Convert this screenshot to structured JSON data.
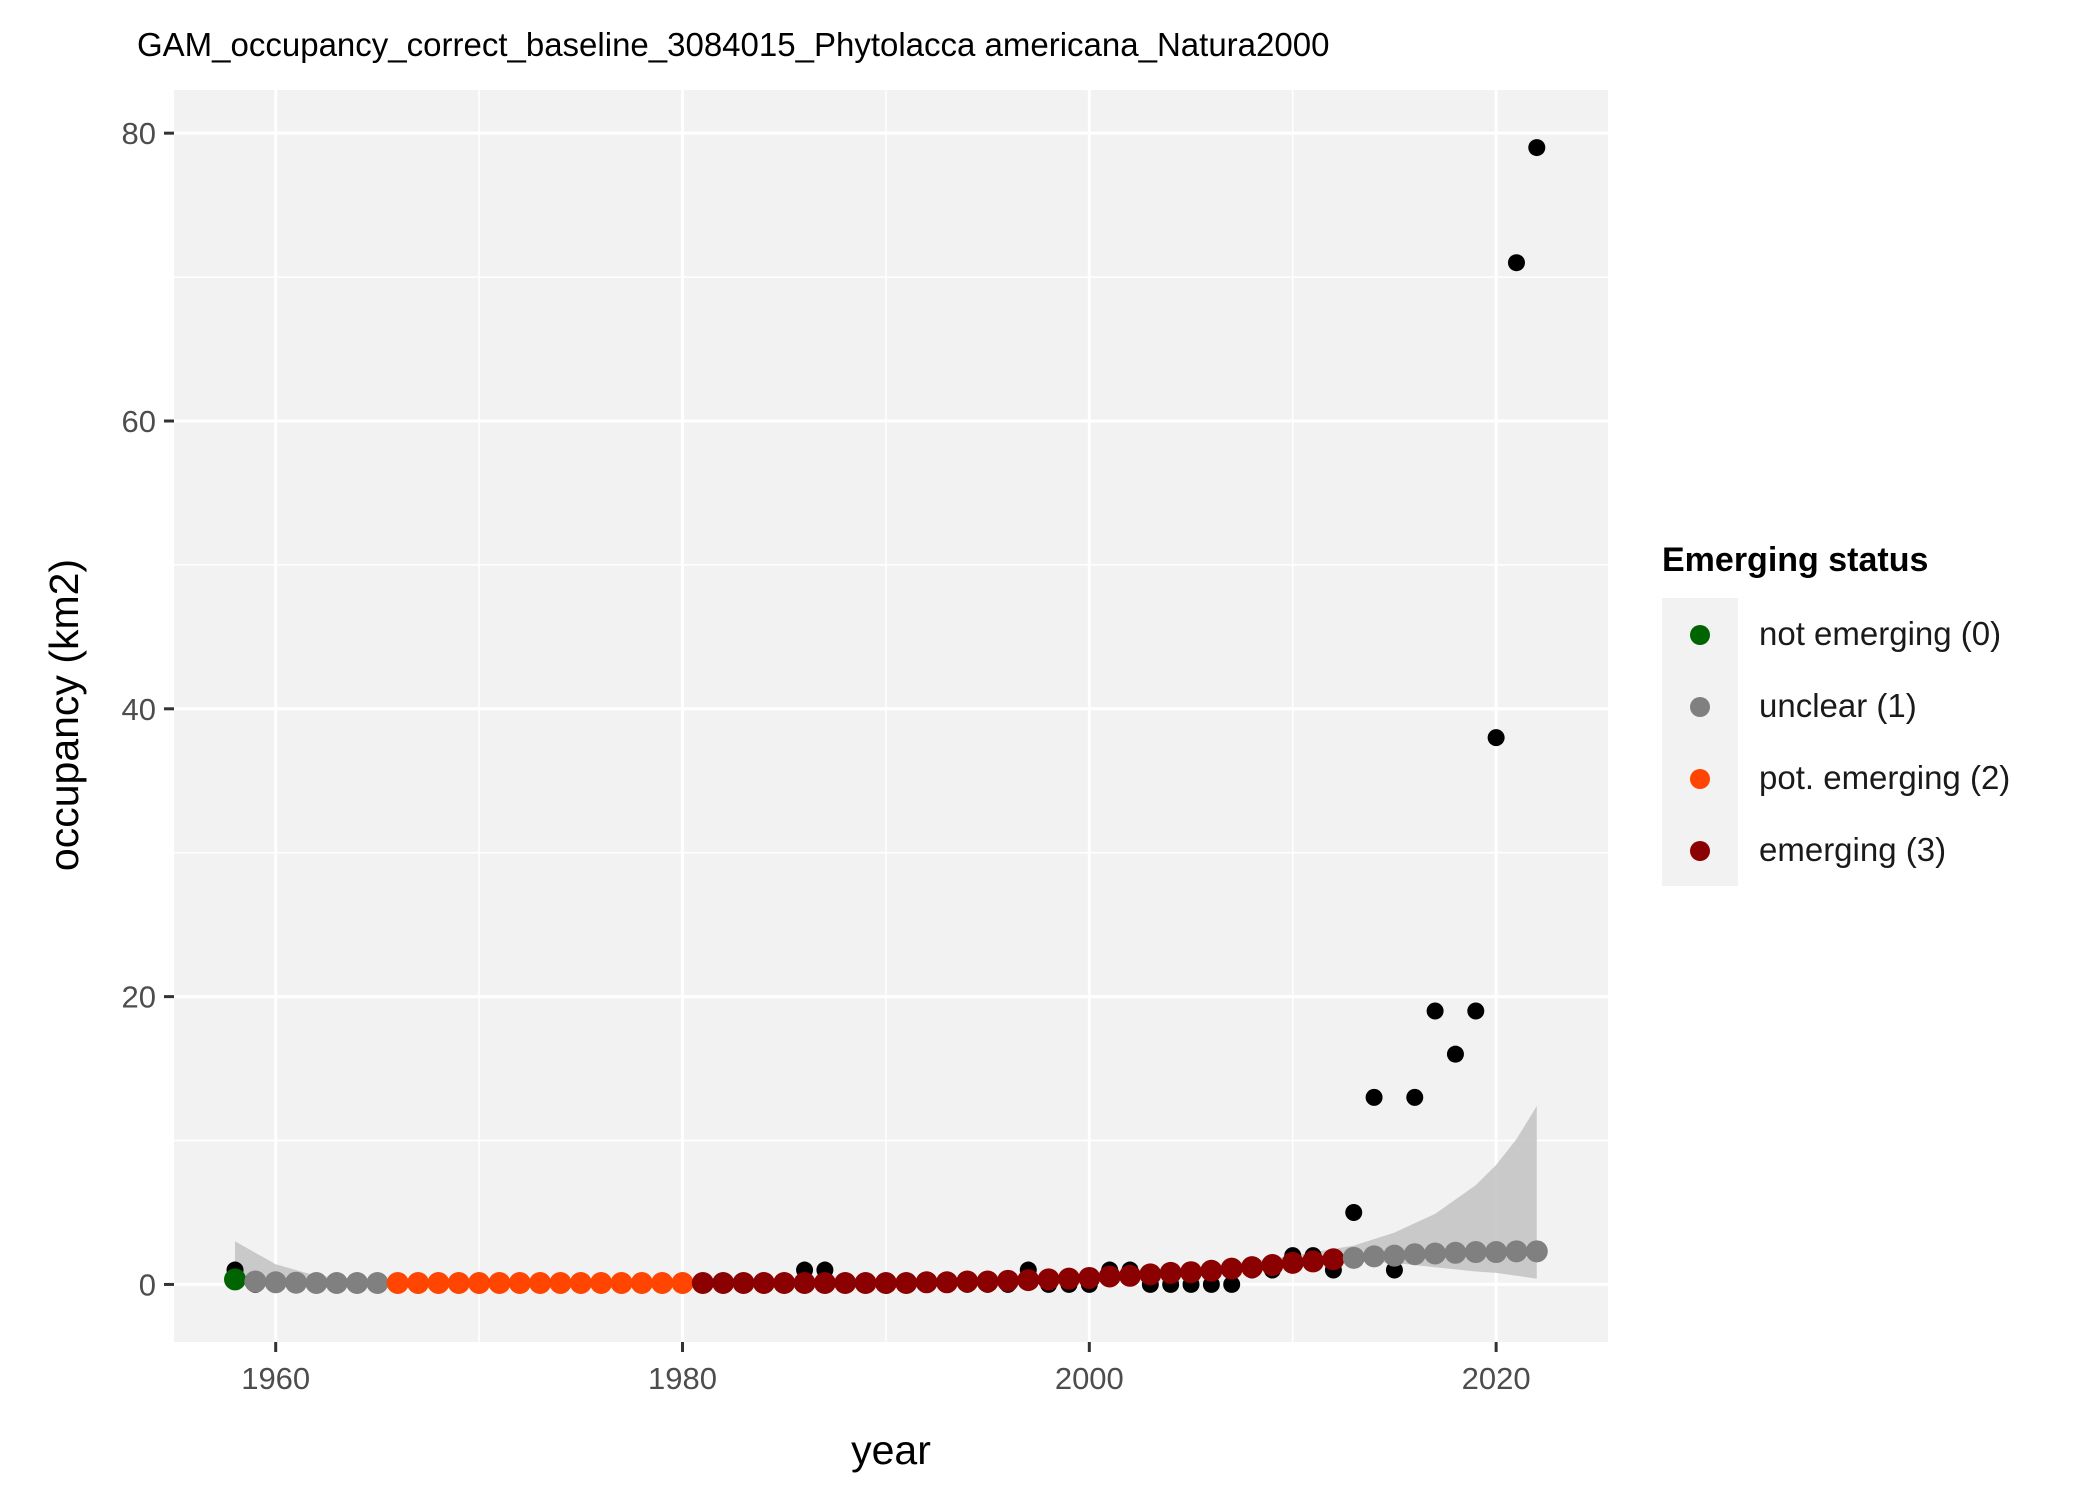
{
  "chart_data": {
    "type": "scatter",
    "title": "GAM_occupancy_correct_baseline_3084015_Phytolacca americana_Natura2000",
    "xlabel": "year",
    "ylabel": "occupancy (km2)",
    "xlim": [
      1955,
      2025.5
    ],
    "ylim": [
      -4,
      83
    ],
    "x_ticks": [
      1960,
      1980,
      2000,
      2020
    ],
    "y_ticks": [
      0,
      20,
      40,
      60,
      80
    ],
    "grid": true,
    "legend_position": "right",
    "observed": {
      "color": "#000000",
      "points": [
        [
          1958,
          1
        ],
        [
          1959,
          0
        ],
        [
          1960,
          0
        ],
        [
          1961,
          0
        ],
        [
          1962,
          0
        ],
        [
          1963,
          0
        ],
        [
          1964,
          0
        ],
        [
          1965,
          0
        ],
        [
          1966,
          0
        ],
        [
          1967,
          0
        ],
        [
          1968,
          0
        ],
        [
          1969,
          0
        ],
        [
          1970,
          0
        ],
        [
          1971,
          0
        ],
        [
          1972,
          0
        ],
        [
          1973,
          0
        ],
        [
          1974,
          0
        ],
        [
          1975,
          0
        ],
        [
          1976,
          0
        ],
        [
          1977,
          0
        ],
        [
          1978,
          0
        ],
        [
          1979,
          0
        ],
        [
          1980,
          0
        ],
        [
          1981,
          0
        ],
        [
          1982,
          0
        ],
        [
          1983,
          0
        ],
        [
          1984,
          0
        ],
        [
          1985,
          0
        ],
        [
          1986,
          1
        ],
        [
          1987,
          1
        ],
        [
          1988,
          0
        ],
        [
          1989,
          0
        ],
        [
          1990,
          0
        ],
        [
          1991,
          0
        ],
        [
          1992,
          0
        ],
        [
          1993,
          0
        ],
        [
          1994,
          0
        ],
        [
          1995,
          0
        ],
        [
          1996,
          0
        ],
        [
          1997,
          1
        ],
        [
          1998,
          0
        ],
        [
          1999,
          0
        ],
        [
          2000,
          0
        ],
        [
          2001,
          1
        ],
        [
          2002,
          1
        ],
        [
          2003,
          0
        ],
        [
          2004,
          0
        ],
        [
          2005,
          0
        ],
        [
          2006,
          0
        ],
        [
          2007,
          0
        ],
        [
          2008,
          1
        ],
        [
          2009,
          1
        ],
        [
          2010,
          2
        ],
        [
          2011,
          2
        ],
        [
          2012,
          1
        ],
        [
          2013,
          5
        ],
        [
          2014,
          13
        ],
        [
          2015,
          1
        ],
        [
          2016,
          13
        ],
        [
          2017,
          19
        ],
        [
          2018,
          16
        ],
        [
          2019,
          19
        ],
        [
          2020,
          38
        ],
        [
          2021,
          71
        ],
        [
          2022,
          79
        ]
      ]
    },
    "fitted": [
      {
        "x": 1958,
        "y": 0.35,
        "status": 0
      },
      {
        "x": 1959,
        "y": 0.2,
        "status": 1
      },
      {
        "x": 1960,
        "y": 0.15,
        "status": 1
      },
      {
        "x": 1961,
        "y": 0.12,
        "status": 1
      },
      {
        "x": 1962,
        "y": 0.1,
        "status": 1
      },
      {
        "x": 1963,
        "y": 0.1,
        "status": 1
      },
      {
        "x": 1964,
        "y": 0.1,
        "status": 1
      },
      {
        "x": 1965,
        "y": 0.1,
        "status": 1
      },
      {
        "x": 1966,
        "y": 0.1,
        "status": 2
      },
      {
        "x": 1967,
        "y": 0.1,
        "status": 2
      },
      {
        "x": 1968,
        "y": 0.1,
        "status": 2
      },
      {
        "x": 1969,
        "y": 0.1,
        "status": 2
      },
      {
        "x": 1970,
        "y": 0.1,
        "status": 2
      },
      {
        "x": 1971,
        "y": 0.1,
        "status": 2
      },
      {
        "x": 1972,
        "y": 0.1,
        "status": 2
      },
      {
        "x": 1973,
        "y": 0.1,
        "status": 2
      },
      {
        "x": 1974,
        "y": 0.1,
        "status": 2
      },
      {
        "x": 1975,
        "y": 0.1,
        "status": 2
      },
      {
        "x": 1976,
        "y": 0.1,
        "status": 2
      },
      {
        "x": 1977,
        "y": 0.1,
        "status": 2
      },
      {
        "x": 1978,
        "y": 0.1,
        "status": 2
      },
      {
        "x": 1979,
        "y": 0.1,
        "status": 2
      },
      {
        "x": 1980,
        "y": 0.1,
        "status": 2
      },
      {
        "x": 1981,
        "y": 0.1,
        "status": 3
      },
      {
        "x": 1982,
        "y": 0.1,
        "status": 3
      },
      {
        "x": 1983,
        "y": 0.1,
        "status": 3
      },
      {
        "x": 1984,
        "y": 0.1,
        "status": 3
      },
      {
        "x": 1985,
        "y": 0.1,
        "status": 3
      },
      {
        "x": 1986,
        "y": 0.1,
        "status": 3
      },
      {
        "x": 1987,
        "y": 0.1,
        "status": 3
      },
      {
        "x": 1988,
        "y": 0.1,
        "status": 3
      },
      {
        "x": 1989,
        "y": 0.1,
        "status": 3
      },
      {
        "x": 1990,
        "y": 0.1,
        "status": 3
      },
      {
        "x": 1991,
        "y": 0.1,
        "status": 3
      },
      {
        "x": 1992,
        "y": 0.15,
        "status": 3
      },
      {
        "x": 1993,
        "y": 0.15,
        "status": 3
      },
      {
        "x": 1994,
        "y": 0.2,
        "status": 3
      },
      {
        "x": 1995,
        "y": 0.2,
        "status": 3
      },
      {
        "x": 1996,
        "y": 0.25,
        "status": 3
      },
      {
        "x": 1997,
        "y": 0.3,
        "status": 3
      },
      {
        "x": 1998,
        "y": 0.35,
        "status": 3
      },
      {
        "x": 1999,
        "y": 0.4,
        "status": 3
      },
      {
        "x": 2000,
        "y": 0.45,
        "status": 3
      },
      {
        "x": 2001,
        "y": 0.55,
        "status": 3
      },
      {
        "x": 2002,
        "y": 0.6,
        "status": 3
      },
      {
        "x": 2003,
        "y": 0.7,
        "status": 3
      },
      {
        "x": 2004,
        "y": 0.8,
        "status": 3
      },
      {
        "x": 2005,
        "y": 0.85,
        "status": 3
      },
      {
        "x": 2006,
        "y": 0.95,
        "status": 3
      },
      {
        "x": 2007,
        "y": 1.1,
        "status": 3
      },
      {
        "x": 2008,
        "y": 1.2,
        "status": 3
      },
      {
        "x": 2009,
        "y": 1.35,
        "status": 3
      },
      {
        "x": 2010,
        "y": 1.5,
        "status": 3
      },
      {
        "x": 2011,
        "y": 1.6,
        "status": 3
      },
      {
        "x": 2012,
        "y": 1.75,
        "status": 3
      },
      {
        "x": 2013,
        "y": 1.85,
        "status": 1
      },
      {
        "x": 2014,
        "y": 1.95,
        "status": 1
      },
      {
        "x": 2015,
        "y": 2.0,
        "status": 1
      },
      {
        "x": 2016,
        "y": 2.1,
        "status": 1
      },
      {
        "x": 2017,
        "y": 2.15,
        "status": 1
      },
      {
        "x": 2018,
        "y": 2.2,
        "status": 1
      },
      {
        "x": 2019,
        "y": 2.25,
        "status": 1
      },
      {
        "x": 2020,
        "y": 2.25,
        "status": 1
      },
      {
        "x": 2021,
        "y": 2.3,
        "status": 1
      },
      {
        "x": 2022,
        "y": 2.3,
        "status": 1
      }
    ],
    "confidence_band": {
      "color": "#c2c2c2",
      "x": [
        1958,
        1960,
        1962,
        1965,
        1970,
        1980,
        1990,
        2000,
        2005,
        2010,
        2013,
        2015,
        2017,
        2019,
        2020,
        2021,
        2022
      ],
      "lower": [
        0.05,
        0.05,
        0.05,
        0.05,
        0.05,
        0.05,
        0.05,
        0.3,
        0.6,
        1.2,
        1.6,
        1.5,
        1.2,
        0.9,
        0.8,
        0.6,
        0.4
      ],
      "upper": [
        3.0,
        1.4,
        0.6,
        0.3,
        0.2,
        0.15,
        0.2,
        0.6,
        1.1,
        2.0,
        2.7,
        3.6,
        4.9,
        6.9,
        8.3,
        10.1,
        12.4
      ]
    },
    "legend": {
      "title": "Emerging status",
      "items": [
        {
          "label": "not emerging (0)",
          "color": "#006400"
        },
        {
          "label": "unclear (1)",
          "color": "#808080"
        },
        {
          "label": "pot. emerging (2)",
          "color": "#FF4500"
        },
        {
          "label": "emerging (3)",
          "color": "#8B0000"
        }
      ]
    }
  },
  "colors": {
    "panel_background": "#f2f2f2",
    "grid": "#ffffff",
    "axis_text": "#4d4d4d"
  }
}
